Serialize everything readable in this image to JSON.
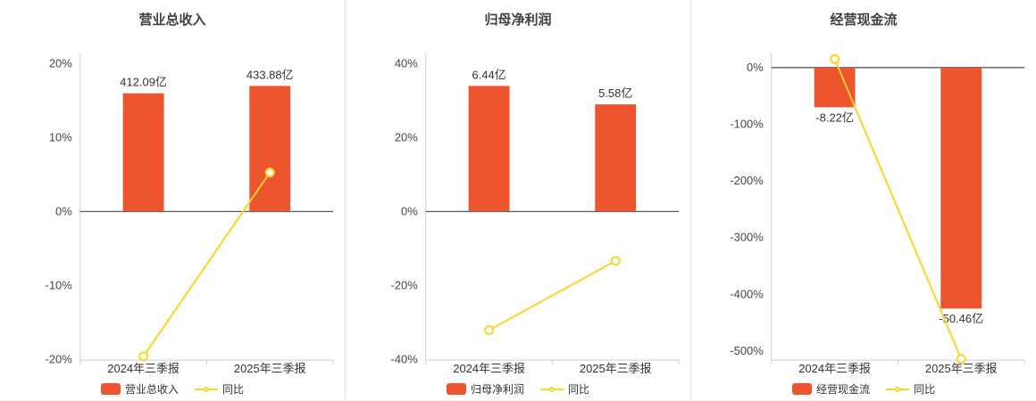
{
  "colors": {
    "bar": "#ec552d",
    "line": "#ffd226",
    "zero_line": "#595959",
    "axis_line": "#cccccc",
    "tick_text": "#464646",
    "title_text": "#404040",
    "label_text": "#333333"
  },
  "chart_data": [
    {
      "type": "bar",
      "title": "营业总收入",
      "categories": [
        "2024年三季报",
        "2025年三季报"
      ],
      "ytick_labels": [
        "20%",
        "10%",
        "0%",
        "-10%",
        "-20%"
      ],
      "ytick_values": [
        20,
        10,
        0,
        -10,
        -20
      ],
      "ylim": [
        -20.1,
        21.4
      ],
      "grid": false,
      "legend_position": "bottom",
      "series": [
        {
          "name": "营业总收入",
          "type": "bar",
          "labels": [
            "412.09亿",
            "433.88亿"
          ],
          "values_yi": [
            412.09,
            433.88
          ],
          "render_height_pct": [
            16,
            17
          ]
        },
        {
          "name": "同比",
          "type": "line",
          "values_pct": [
            -19.6,
            5.29
          ]
        }
      ]
    },
    {
      "type": "bar",
      "title": "归母净利润",
      "categories": [
        "2024年三季报",
        "2025年三季报"
      ],
      "ytick_labels": [
        "40%",
        "20%",
        "0%",
        "-20%",
        "-40%"
      ],
      "ytick_values": [
        40,
        20,
        0,
        -20,
        -40
      ],
      "ylim": [
        -40.2,
        42.8
      ],
      "grid": false,
      "legend_position": "bottom",
      "series": [
        {
          "name": "归母净利润",
          "type": "bar",
          "labels": [
            "6.44亿",
            "5.58亿"
          ],
          "values_yi": [
            6.44,
            5.58
          ],
          "render_height_pct": [
            34,
            29
          ]
        },
        {
          "name": "同比",
          "type": "line",
          "values_pct": [
            -32.1,
            -13.35
          ]
        }
      ]
    },
    {
      "type": "bar",
      "title": "经营现金流",
      "categories": [
        "2024年三季报",
        "2025年三季报"
      ],
      "ytick_labels": [
        "0%",
        "-100%",
        "-200%",
        "-300%",
        "-400%",
        "-500%"
      ],
      "ytick_values": [
        0,
        -100,
        -200,
        -300,
        -400,
        -500
      ],
      "ylim": [
        -516,
        25
      ],
      "grid": false,
      "legend_position": "bottom",
      "series": [
        {
          "name": "经营现金流",
          "type": "bar",
          "labels": [
            "-8.22亿",
            "-50.46亿"
          ],
          "values_yi": [
            -8.22,
            -50.46
          ],
          "render_height_pct": [
            -70,
            -425
          ]
        },
        {
          "name": "同比",
          "type": "line",
          "values_pct": [
            15,
            -513.87
          ]
        }
      ]
    }
  ]
}
